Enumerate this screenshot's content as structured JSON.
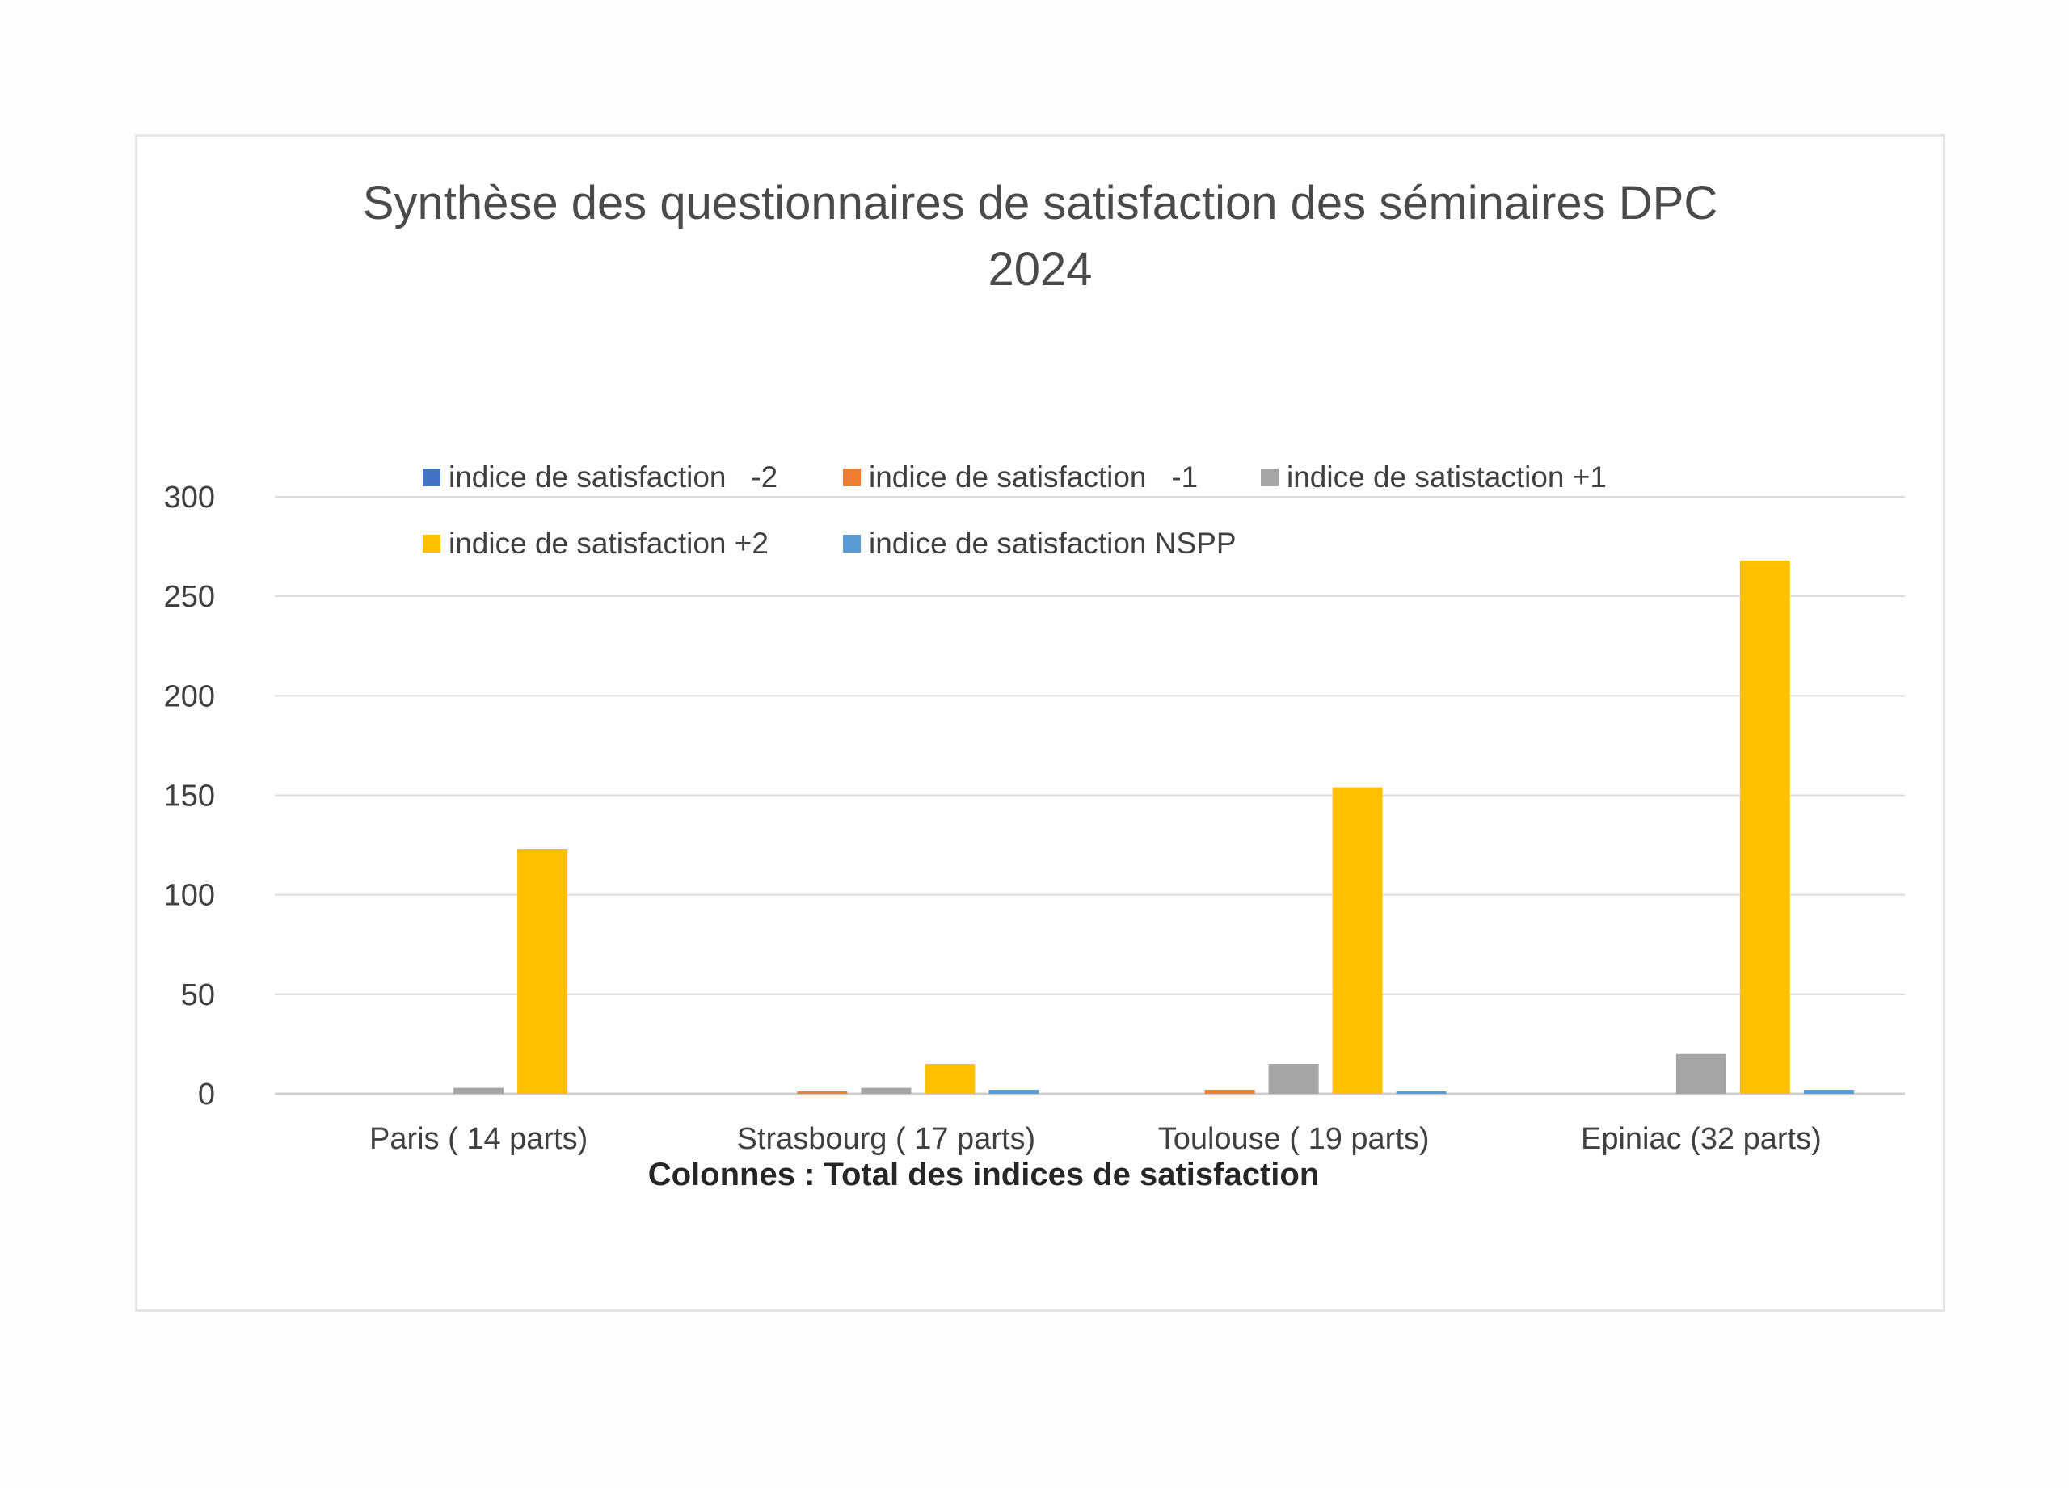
{
  "chart_data": {
    "type": "bar",
    "title": "Synthèse des questionnaires de satisfaction des séminaires DPC\n2024",
    "xlabel": "Colonnes : Total des indices de satisfaction",
    "ylabel": "",
    "ylim": [
      0,
      300
    ],
    "yticks": [
      "0",
      "50",
      "100",
      "150",
      "200",
      "250",
      "300"
    ],
    "grid": true,
    "legend_position": "top",
    "categories": [
      "Paris ( 14 parts)",
      "Strasbourg ( 17 parts)",
      "Toulouse ( 19 parts)",
      "Epiniac (32 parts)"
    ],
    "series": [
      {
        "name": "indice de satisfaction   -2",
        "color": "#4472c4",
        "values": [
          0,
          0,
          0,
          0
        ]
      },
      {
        "name": "indice de satisfaction   -1",
        "color": "#ed7d31",
        "values": [
          0,
          1,
          2,
          0
        ]
      },
      {
        "name": "indice de satistaction +1",
        "color": "#a5a5a5",
        "values": [
          3,
          3,
          15,
          20
        ]
      },
      {
        "name": "indice de satisfaction +2",
        "color": "#ffc000",
        "values": [
          123,
          15,
          154,
          268
        ]
      },
      {
        "name": "indice de satisfaction NSPP",
        "color": "#5b9bd5",
        "values": [
          0,
          2,
          1,
          2
        ]
      }
    ]
  }
}
